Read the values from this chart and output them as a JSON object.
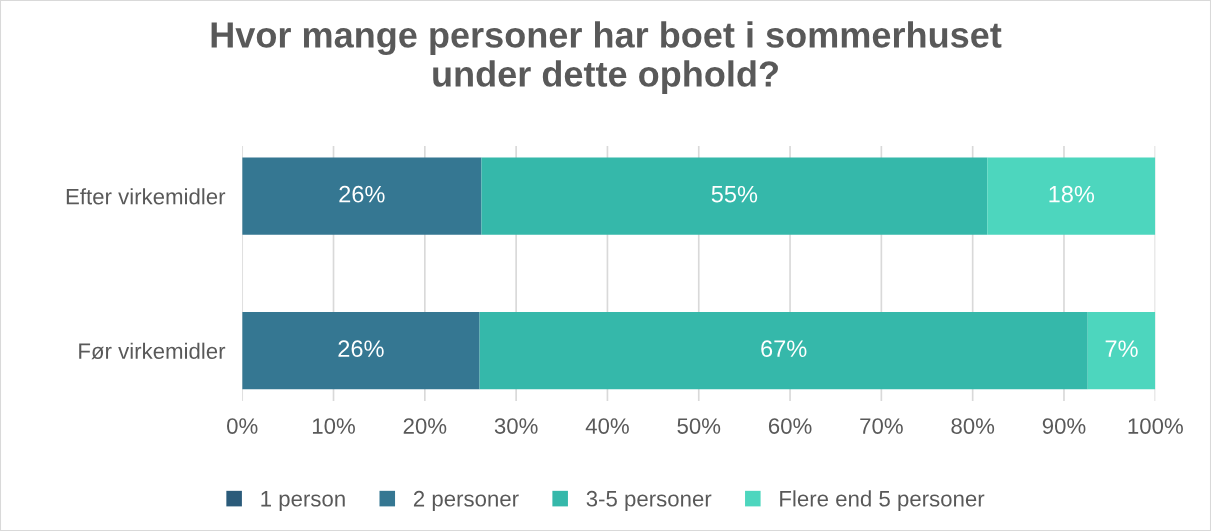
{
  "chart_data": {
    "type": "bar",
    "orientation": "horizontal",
    "stacked": true,
    "title": "Hvor mange personer har boet i sommerhuset\nunder dette ophold?",
    "categories": [
      "Efter virkemidler",
      "Før virkemidler"
    ],
    "series": [
      {
        "name": "1 person",
        "color": "#2b5b7a",
        "values": [
          0,
          0
        ],
        "value_labels": [
          null,
          null
        ]
      },
      {
        "name": "2 personer",
        "color": "#357792",
        "values": [
          26.2,
          26.0
        ],
        "value_labels": [
          "26%",
          "26%"
        ]
      },
      {
        "name": "3-5 personer",
        "color": "#35b8aa",
        "values": [
          55.4,
          66.6
        ],
        "value_labels": [
          "55%",
          "67%"
        ]
      },
      {
        "name": "Flere end 5 personer",
        "color": "#4dd6be",
        "values": [
          18.4,
          7.4
        ],
        "value_labels": [
          "18%",
          "7%"
        ]
      }
    ],
    "xlim": [
      0,
      100
    ],
    "xticks": [
      {
        "value": 0,
        "label": "0%"
      },
      {
        "value": 10,
        "label": "10%"
      },
      {
        "value": 20,
        "label": "20%"
      },
      {
        "value": 30,
        "label": "30%"
      },
      {
        "value": 40,
        "label": "40%"
      },
      {
        "value": 50,
        "label": "50%"
      },
      {
        "value": 60,
        "label": "60%"
      },
      {
        "value": 70,
        "label": "70%"
      },
      {
        "value": 80,
        "label": "80%"
      },
      {
        "value": 90,
        "label": "90%"
      },
      {
        "value": 100,
        "label": "100%"
      }
    ],
    "grid": "x",
    "legend": "bottom"
  }
}
